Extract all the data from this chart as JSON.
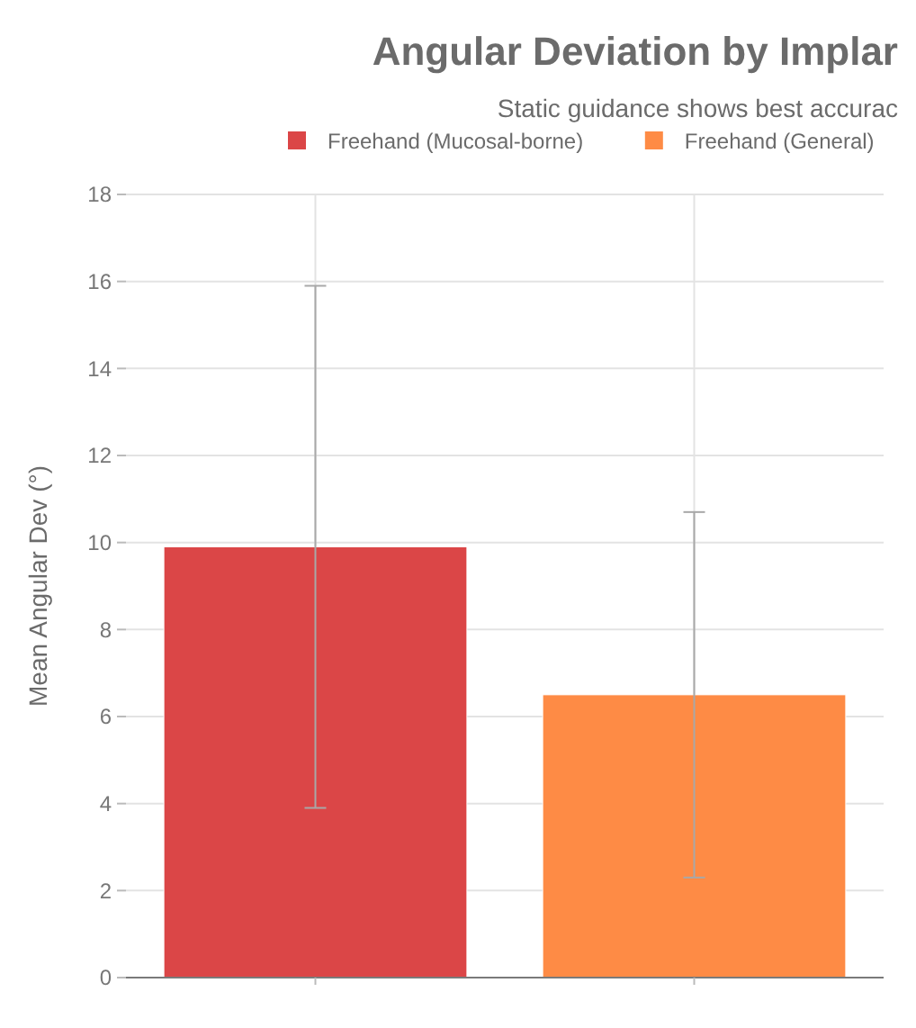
{
  "chart_data": {
    "type": "bar",
    "title": "Angular Deviation by Implar",
    "subtitle": "Static guidance shows best accurac",
    "ylabel": "Mean Angular Dev (°)",
    "categories": [
      null,
      null
    ],
    "series": [
      {
        "name": "Freehand (Mucosal-borne)",
        "color": "#db4647",
        "values": [
          9.9,
          null
        ],
        "errors": [
          6.0,
          null
        ]
      },
      {
        "name": "Freehand (General)",
        "color": "#fe8b45",
        "values": [
          null,
          6.5
        ],
        "errors": [
          null,
          4.2
        ]
      }
    ],
    "ylim": [
      0,
      18
    ],
    "yticks": [
      0,
      2,
      4,
      6,
      8,
      10,
      12,
      14,
      16,
      18
    ],
    "grid": true,
    "legend": "top"
  }
}
